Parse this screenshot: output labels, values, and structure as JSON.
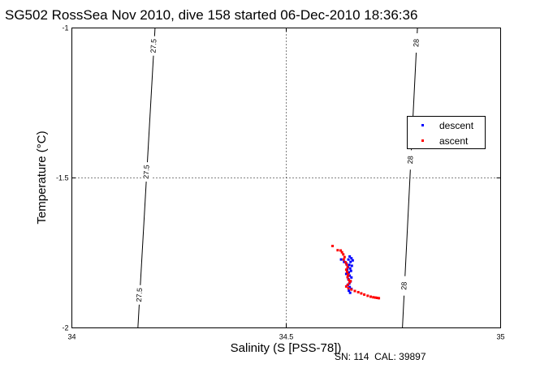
{
  "chart_data": {
    "type": "scatter",
    "title": "SG502 RossSea Nov 2010, dive 158 started 06-Dec-2010 18:36:36",
    "xlabel": "Salinity (S [PSS-78])",
    "ylabel": "Temperature (°C)",
    "footer": "SN: 114  CAL: 39897",
    "xlim": [
      34,
      35
    ],
    "ylim": [
      -2,
      -1
    ],
    "xticks": [
      34,
      34.5,
      35
    ],
    "xtick_labels": [
      "34",
      "34.5",
      "35"
    ],
    "yticks": [
      -2,
      -1.5,
      -1
    ],
    "ytick_labels": [
      "-2",
      "-1.5",
      "-1"
    ],
    "grid": "dotted lines at tick values",
    "legend_position": "right",
    "series": [
      {
        "name": "descent",
        "color": "#0000ff",
        "marker": "point",
        "points": [
          [
            34.648,
            -1.762
          ],
          [
            34.652,
            -1.768
          ],
          [
            34.645,
            -1.772
          ],
          [
            34.655,
            -1.775
          ],
          [
            34.65,
            -1.78
          ],
          [
            34.64,
            -1.785
          ],
          [
            34.647,
            -1.79
          ],
          [
            34.653,
            -1.793
          ],
          [
            34.644,
            -1.797
          ],
          [
            34.649,
            -1.802
          ],
          [
            34.642,
            -1.806
          ],
          [
            34.651,
            -1.81
          ],
          [
            34.646,
            -1.815
          ],
          [
            34.64,
            -1.82
          ],
          [
            34.648,
            -1.826
          ],
          [
            34.652,
            -1.832
          ],
          [
            34.645,
            -1.838
          ],
          [
            34.65,
            -1.845
          ],
          [
            34.647,
            -1.852
          ],
          [
            34.643,
            -1.858
          ],
          [
            34.648,
            -1.864
          ],
          [
            34.652,
            -1.87
          ],
          [
            34.646,
            -1.876
          ],
          [
            34.649,
            -1.883
          ],
          [
            34.628,
            -1.772
          ],
          [
            34.635,
            -1.78
          ]
        ]
      },
      {
        "name": "ascent",
        "color": "#ff0000",
        "marker": "point",
        "points": [
          [
            34.608,
            -1.727
          ],
          [
            34.62,
            -1.741
          ],
          [
            34.627,
            -1.742
          ],
          [
            34.63,
            -1.748
          ],
          [
            34.633,
            -1.755
          ],
          [
            34.636,
            -1.764
          ],
          [
            34.634,
            -1.772
          ],
          [
            34.638,
            -1.781
          ],
          [
            34.641,
            -1.789
          ],
          [
            34.643,
            -1.798
          ],
          [
            34.64,
            -1.806
          ],
          [
            34.642,
            -1.814
          ],
          [
            34.645,
            -1.822
          ],
          [
            34.643,
            -1.831
          ],
          [
            34.646,
            -1.84
          ],
          [
            34.648,
            -1.848
          ],
          [
            34.644,
            -1.856
          ],
          [
            34.64,
            -1.862
          ],
          [
            34.645,
            -1.868
          ],
          [
            34.652,
            -1.872
          ],
          [
            34.66,
            -1.877
          ],
          [
            34.668,
            -1.881
          ],
          [
            34.675,
            -1.885
          ],
          [
            34.682,
            -1.889
          ],
          [
            34.69,
            -1.893
          ],
          [
            34.697,
            -1.896
          ],
          [
            34.703,
            -1.898
          ],
          [
            34.708,
            -1.899
          ],
          [
            34.712,
            -1.9
          ],
          [
            34.716,
            -1.901
          ],
          [
            34.65,
            -1.844
          ],
          [
            34.644,
            -1.824
          ]
        ]
      }
    ],
    "contours": [
      {
        "label": "27.5",
        "path": [
          [
            34.194,
            -1
          ],
          [
            34.154,
            -2
          ]
        ],
        "label_positions": [
          -1.06,
          -1.48,
          -1.89
        ]
      },
      {
        "label": "28",
        "path": [
          [
            34.806,
            -1
          ],
          [
            34.771,
            -2
          ]
        ],
        "label_positions": [
          -1.05,
          -1.44,
          -1.86
        ]
      }
    ]
  }
}
